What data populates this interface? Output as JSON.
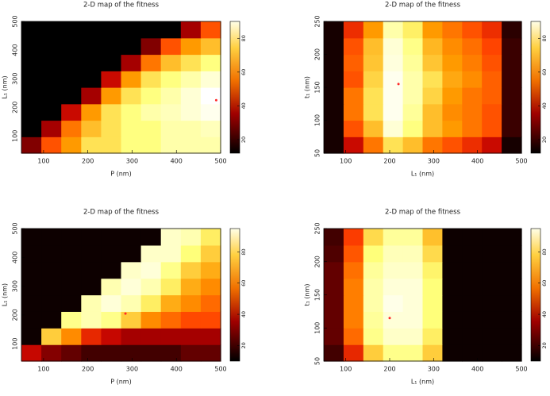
{
  "chart_data": [
    {
      "type": "heatmap",
      "title": "2-D map of the fitness",
      "xlabel": "P (nm)",
      "ylabel": "L₁ (nm)",
      "xlim": [
        50,
        500
      ],
      "ylim": [
        40,
        500
      ],
      "xticks": [
        100,
        200,
        300,
        400,
        500
      ],
      "yticks": [
        100,
        200,
        300,
        400,
        500
      ],
      "clim": [
        12,
        90
      ],
      "cticks": [
        20,
        40,
        60,
        80
      ],
      "z": [
        [
          30,
          50,
          60,
          70,
          70,
          75,
          75,
          80,
          80,
          80
        ],
        [
          12,
          35,
          55,
          65,
          70,
          75,
          75,
          80,
          80,
          82
        ],
        [
          12,
          12,
          40,
          60,
          70,
          75,
          80,
          82,
          85,
          88
        ],
        [
          12,
          12,
          12,
          35,
          60,
          70,
          75,
          80,
          85,
          90
        ],
        [
          12,
          12,
          12,
          12,
          40,
          60,
          70,
          75,
          80,
          85
        ],
        [
          12,
          12,
          12,
          12,
          12,
          35,
          55,
          65,
          70,
          75
        ],
        [
          12,
          12,
          12,
          12,
          12,
          12,
          30,
          50,
          60,
          65
        ],
        [
          12,
          12,
          12,
          12,
          12,
          12,
          12,
          12,
          35,
          50
        ]
      ],
      "optimum": {
        "x": 490,
        "y": 225
      },
      "optimum_color": "#ff2a2a"
    },
    {
      "type": "heatmap",
      "title": "2-D map of the fitness",
      "xlabel": "L₁ (nm)",
      "ylabel": "t₁ (nm)",
      "xlim": [
        50,
        500
      ],
      "ylim": [
        50,
        250
      ],
      "xticks": [
        100,
        200,
        300,
        400,
        500
      ],
      "yticks": [
        50,
        100,
        150,
        200,
        250
      ],
      "clim": [
        12,
        90
      ],
      "cticks": [
        20,
        40,
        60,
        80
      ],
      "z": [
        [
          15,
          40,
          55,
          70,
          65,
          55,
          50,
          45,
          40,
          15
        ],
        [
          15,
          50,
          65,
          85,
          75,
          65,
          60,
          55,
          50,
          20
        ],
        [
          15,
          55,
          70,
          88,
          78,
          65,
          58,
          55,
          50,
          20
        ],
        [
          15,
          55,
          70,
          88,
          80,
          68,
          60,
          55,
          52,
          20
        ],
        [
          15,
          50,
          68,
          88,
          80,
          70,
          62,
          58,
          52,
          20
        ],
        [
          15,
          52,
          66,
          86,
          78,
          66,
          60,
          56,
          50,
          20
        ],
        [
          15,
          50,
          65,
          85,
          76,
          64,
          58,
          54,
          48,
          20
        ],
        [
          15,
          45,
          60,
          80,
          72,
          60,
          55,
          50,
          45,
          18
        ]
      ],
      "optimum": {
        "x": 220,
        "y": 155
      },
      "optimum_color": "#ff2a2a"
    },
    {
      "type": "heatmap",
      "title": "2-D map of the fitness",
      "xlabel": "P (nm)",
      "ylabel": "L₁ (nm)",
      "xlim": [
        50,
        500
      ],
      "ylim": [
        40,
        500
      ],
      "xticks": [
        100,
        200,
        300,
        400,
        500
      ],
      "yticks": [
        100,
        200,
        300,
        400,
        500
      ],
      "clim": [
        10,
        95
      ],
      "cticks": [
        20,
        40,
        60,
        80
      ],
      "z": [
        [
          40,
          30,
          25,
          20,
          20,
          20,
          20,
          20,
          25,
          25
        ],
        [
          12,
          70,
          60,
          45,
          40,
          35,
          35,
          35,
          35,
          35
        ],
        [
          12,
          12,
          80,
          85,
          80,
          70,
          60,
          55,
          50,
          50
        ],
        [
          12,
          12,
          12,
          85,
          90,
          85,
          75,
          65,
          60,
          55
        ],
        [
          12,
          12,
          12,
          12,
          85,
          90,
          85,
          75,
          65,
          60
        ],
        [
          12,
          12,
          12,
          12,
          12,
          88,
          90,
          80,
          70,
          65
        ],
        [
          12,
          12,
          12,
          12,
          12,
          12,
          88,
          88,
          78,
          70
        ],
        [
          12,
          12,
          12,
          12,
          12,
          12,
          12,
          88,
          85,
          75
        ]
      ],
      "optimum": {
        "x": 285,
        "y": 205
      },
      "optimum_color": "#ff2a2a"
    },
    {
      "type": "heatmap",
      "title": "2-D map of the fitness",
      "xlabel": "L₁ (nm)",
      "ylabel": "t₁ (nm)",
      "xlim": [
        50,
        500
      ],
      "ylim": [
        50,
        250
      ],
      "xticks": [
        100,
        200,
        300,
        400,
        500
      ],
      "yticks": [
        50,
        100,
        150,
        200,
        250
      ],
      "clim": [
        10,
        95
      ],
      "cticks": [
        20,
        40,
        60,
        80
      ],
      "z": [
        [
          20,
          45,
          70,
          80,
          80,
          70,
          12,
          12,
          12,
          12
        ],
        [
          25,
          55,
          80,
          88,
          88,
          75,
          12,
          12,
          12,
          12
        ],
        [
          25,
          58,
          82,
          90,
          90,
          78,
          12,
          12,
          12,
          12
        ],
        [
          25,
          58,
          84,
          92,
          90,
          78,
          12,
          12,
          12,
          12
        ],
        [
          25,
          58,
          84,
          90,
          90,
          78,
          12,
          12,
          12,
          12
        ],
        [
          25,
          56,
          82,
          88,
          88,
          76,
          12,
          12,
          12,
          12
        ],
        [
          22,
          52,
          78,
          86,
          86,
          72,
          12,
          12,
          12,
          12
        ],
        [
          20,
          48,
          72,
          82,
          82,
          68,
          12,
          12,
          12,
          12
        ]
      ],
      "optimum": {
        "x": 200,
        "y": 115
      },
      "optimum_color": "#ff2a2a"
    }
  ]
}
